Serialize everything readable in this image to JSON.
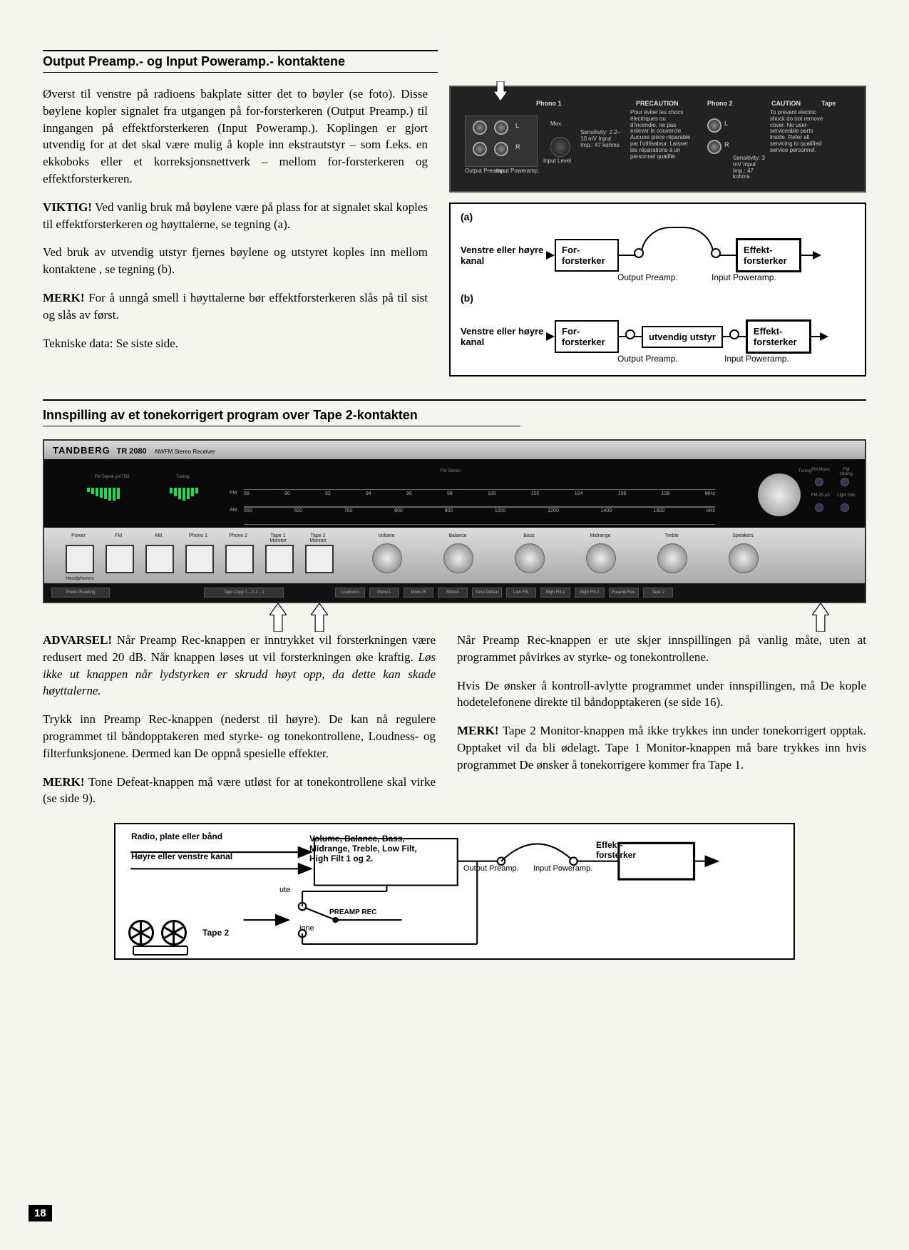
{
  "section1": {
    "title": "Output Preamp.- og Input Poweramp.- kontaktene",
    "p1": "Øverst til venstre på radioens bakplate sitter det to bøyler (se foto). Disse bøylene kopler signalet fra utgangen på for-forsterkeren (Output Preamp.) til inngangen på effektforsterkeren (Input Poweramp.). Koplingen er gjort utvendig for at det skal være mulig å kople inn ekstrautstyr – som f.eks. en ekkoboks eller et korreksjonsnettverk – mellom for-forsterkeren og effektforsterkeren.",
    "p2_bold": "VIKTIG!",
    "p2": " Ved vanlig bruk må bøylene være på plass for at signalet skal koples til effektforsterkeren og høyttalerne, se tegning (a).",
    "p3": "Ved bruk av utvendig utstyr fjernes bøylene og utstyret koples inn mellom kontaktene , se tegning (b).",
    "p4_bold": "MERK!",
    "p4": " For å unngå smell i høyttalerne bør effektforsterkeren slås på til sist og slås av først.",
    "p5": "Tekniske data: Se siste side."
  },
  "backpanel": {
    "phono1": "Phono 1",
    "phono2": "Phono 2",
    "precaution": "PRECAUTION",
    "precaution_text": "Pour éviter les chocs électriques ou d'incendie, ne pas enlever le couvercle. Aucune pièce réparable par l'utilisateur. Laisser les réparations à un personnel qualifié.",
    "caution": "CAUTION",
    "caution_text": "To prevent electric shock do not remove cover. No user-serviceable parts inside. Refer all servicing to qualified service personnel.",
    "tape": "Tape",
    "output_preamp": "Output Preamp.",
    "input_poweramp": "Input Poweramp.",
    "input_level": "Input Level",
    "sensitivity1": "Sensitivity: 2.2–10 mV Input Imp.: 47 kohms",
    "sensitivity2": "Sensitivity: 3 mV Input Imp.: 47 kohms",
    "max": "Max.",
    "L": "L",
    "R": "R"
  },
  "diagramA": {
    "tag": "(a)",
    "left": "Venstre eller høyre kanal",
    "box1": "For-\nforsterker",
    "box2": "Effekt-\nforsterker",
    "out": "Output Preamp.",
    "in": "Input Poweramp."
  },
  "diagramB": {
    "tag": "(b)",
    "left": "Venstre eller høyre kanal",
    "box1": "For-\nforsterker",
    "mid": "utvendig utstyr",
    "box2": "Effekt-\nforsterker",
    "out": "Output Preamp.",
    "in": "Input Poweramp."
  },
  "section2": {
    "title": "Innspilling av et tonekorrigert program over Tape 2-kontakten"
  },
  "frontpanel": {
    "brand": "TANDBERG",
    "model": "TR 2080",
    "subtitle": "AM/FM Stereo Receiver",
    "meter1": "FM Signal µV/75Ω",
    "meter2": "Tuning",
    "fm_stereo": "FM Stereo",
    "tuning": "Tuning",
    "led_labels": [
      "FM Mono",
      "FM Muting",
      "FM 25 µS",
      "Light Dim"
    ],
    "fm_scale": [
      "88",
      "90",
      "92",
      "94",
      "96",
      "98",
      "100",
      "102",
      "104",
      "106",
      "108",
      "MHz"
    ],
    "am_scale": [
      "550",
      "600",
      "700",
      "800",
      "900",
      "1000",
      "1200",
      "1400",
      "1600",
      "kHz"
    ],
    "fm_label": "FM",
    "am_label": "AM",
    "buttons": [
      "Power",
      "FM",
      "AM",
      "Phono 1",
      "Phono 2",
      "Tape 1 Monitor",
      "Tape 2 Monitor"
    ],
    "knobs": [
      "Volume",
      "Balance",
      "Bass",
      "Midrange",
      "Treble",
      "Speakers"
    ],
    "headphones": "Headphones",
    "power_reading": "Power Reading",
    "tape_copy": "Tape Copy 1→2   2→1",
    "switches": [
      "Loudness",
      "Mono L",
      "Mono R",
      "Stereo",
      "Tone Defeat",
      "Low Filt.",
      "High Filt.1",
      "High Filt.2",
      "Preamp Rec.",
      "Tape 2"
    ]
  },
  "body2": {
    "l1_bold": "ADVARSEL!",
    "l1": " Når Preamp Rec-knappen er inntrykket vil forsterkningen være redusert med 20 dB. Når knappen løses ut vil forsterkningen øke kraftig. ",
    "l1_i": "Løs ikke ut knappen når lydstyrken er skrudd høyt opp, da dette kan skade høyttalerne.",
    "l2": "Trykk inn Preamp Rec-knappen (nederst til høyre). De kan nå regulere programmet til båndopptakeren med styrke- og tonekontrollene, Loudness- og filterfunksjonene. Dermed kan De oppnå spesielle effekter.",
    "l3_bold": "MERK!",
    "l3": " Tone Defeat-knappen må være utløst for at tonekontrollene skal virke (se side 9).",
    "r1": "Når Preamp Rec-knappen er ute skjer innspillingen på vanlig måte, uten at programmet påvirkes av styrke- og tonekontrollene.",
    "r2": "Hvis De ønsker å kontroll-avlytte programmet under innspillingen, må De kople hodetelefonene direkte til båndopptakeren (se side 16).",
    "r3_bold": "MERK!",
    "r3": " Tape 2 Monitor-knappen må ikke trykkes inn under tonekorrigert opptak. Opptaket vil da bli ødelagt. Tape 1 Monitor-knappen må bare trykkes inn hvis programmet De ønsker å tonekorrigere kommer fra Tape 1."
  },
  "diagram2": {
    "src1": "Radio, plate eller bånd",
    "src2": "Høyre eller venstre kanal",
    "tone_box": "Volume, Balance, Bass, Midrange, Treble, Low Filt, High Filt 1 og 2.",
    "box2": "Effekt-\nforsterker",
    "out": "Output Preamp.",
    "in": "Input Poweramp.",
    "tape2": "Tape 2",
    "ute": "ute",
    "inne": "inne",
    "preamp_rec": "PREAMP REC"
  },
  "page_number": "18",
  "colors": {
    "black": "#000000",
    "panel_dark": "#1a1a1a",
    "panel_silver": "#c8c8c8",
    "text": "#000000"
  }
}
